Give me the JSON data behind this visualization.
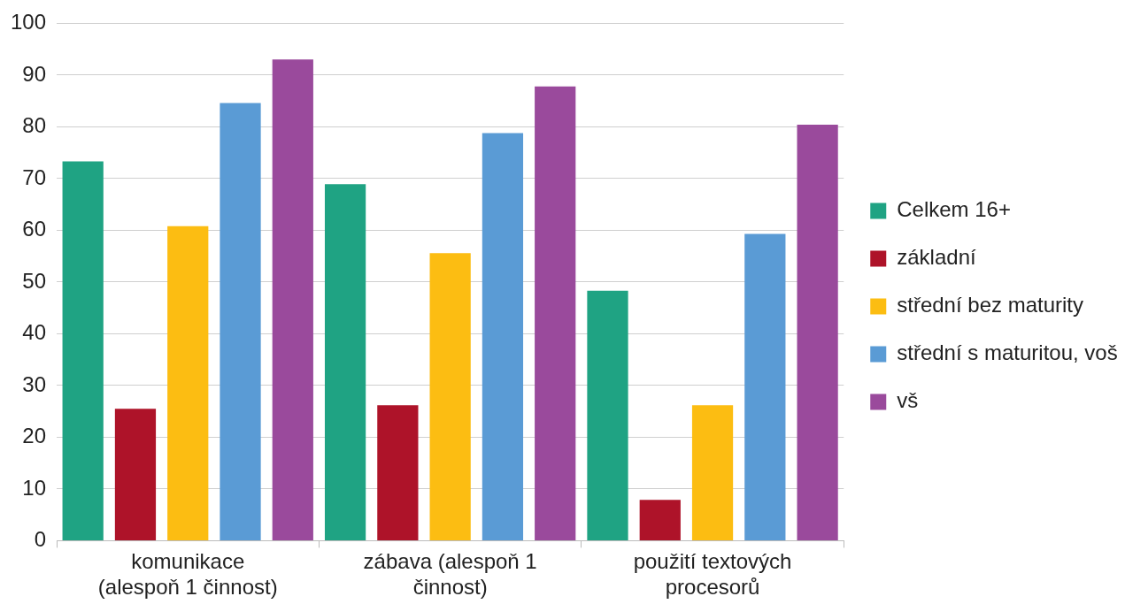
{
  "chart_data": {
    "type": "bar",
    "categories": [
      "komunikace (alespoň 1 činnost)",
      "zábava (alespoň 1 činnost)",
      "použití textových procesorů"
    ],
    "series": [
      {
        "name": "Celkem 16+",
        "color": "#1fa383",
        "values": [
          73.3,
          68.9,
          48.3
        ]
      },
      {
        "name": "základní",
        "color": "#ae1329",
        "values": [
          25.5,
          26.2,
          7.9
        ]
      },
      {
        "name": "střední bez maturity",
        "color": "#fcbd12",
        "values": [
          60.8,
          55.6,
          26.2
        ]
      },
      {
        "name": "střední s maturitou, voš",
        "color": "#5a9bd5",
        "values": [
          84.6,
          78.8,
          59.3
        ]
      },
      {
        "name": "vš",
        "color": "#9a4a9c",
        "values": [
          93.0,
          87.8,
          80.4
        ]
      }
    ],
    "ylim": [
      0,
      100
    ],
    "yticks": [
      0,
      10,
      20,
      30,
      40,
      50,
      60,
      70,
      80,
      90,
      100
    ],
    "grid": "y",
    "legend": "right"
  }
}
